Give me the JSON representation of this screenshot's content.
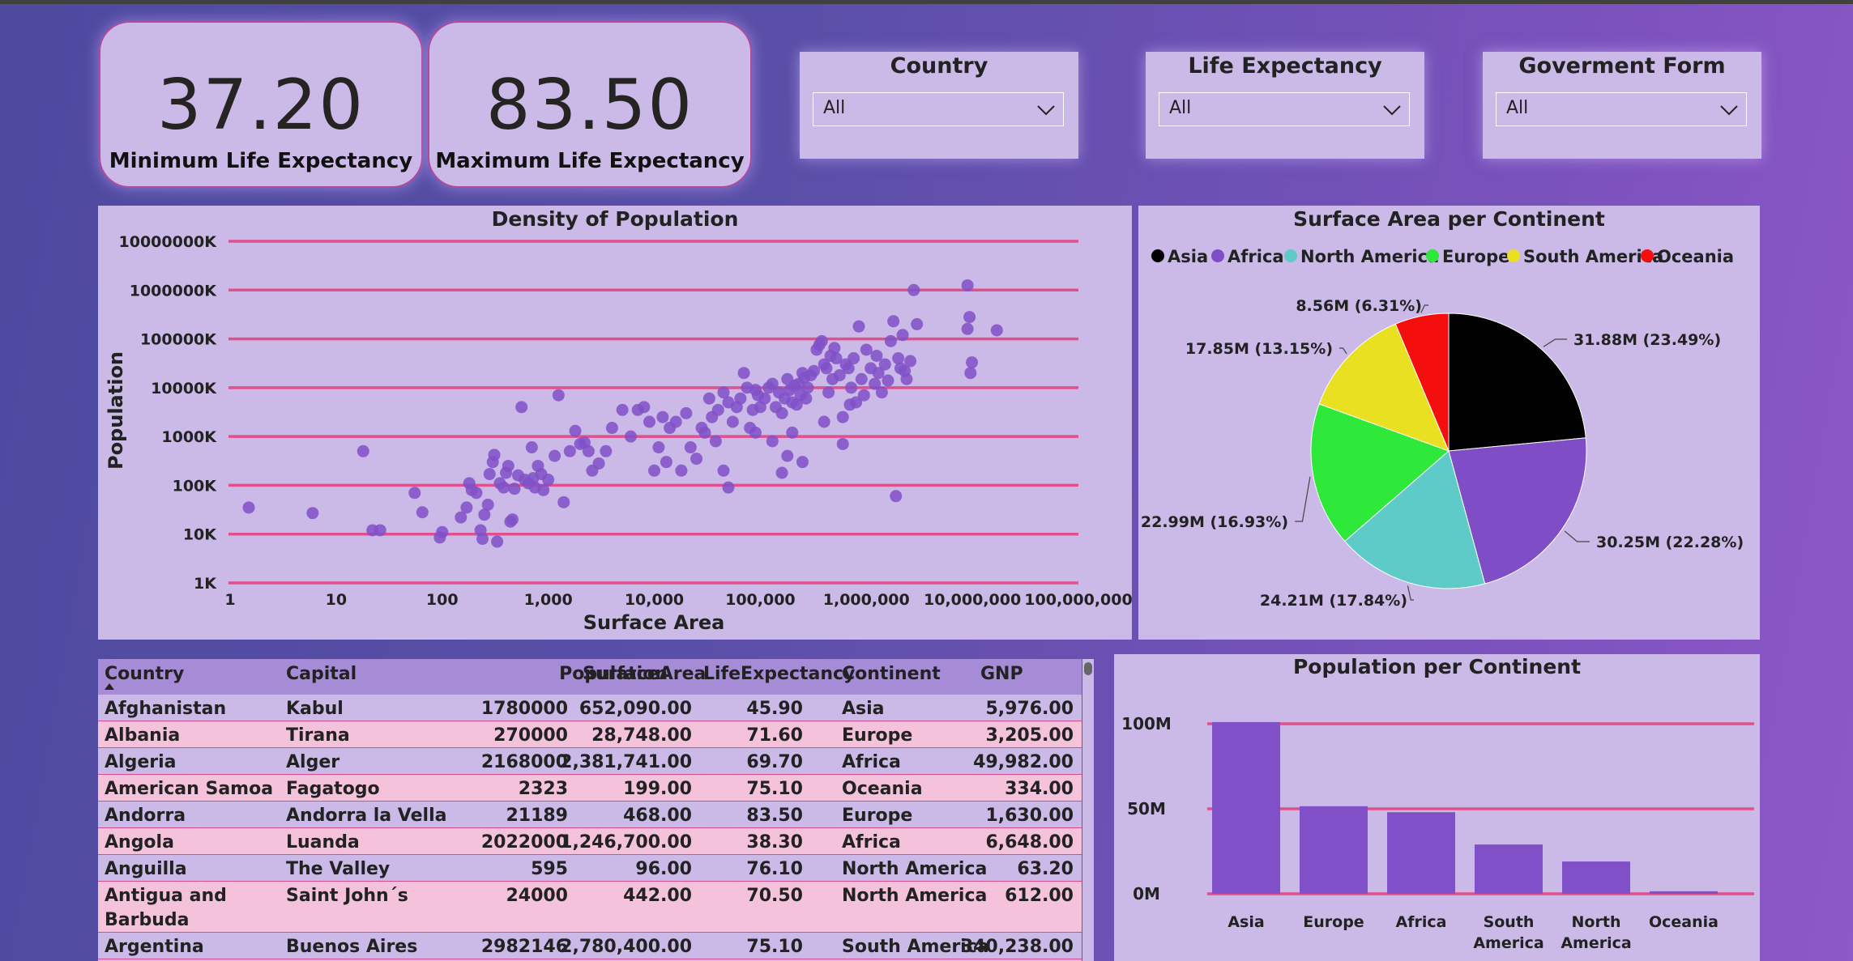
{
  "kpis": [
    {
      "value": "37.20",
      "label": "Minimum Life Expectancy"
    },
    {
      "value": "83.50",
      "label": "Maximum Life Expectancy"
    }
  ],
  "slicers": [
    {
      "title": "Country",
      "value": "All"
    },
    {
      "title": "Life Expectancy",
      "value": "All"
    },
    {
      "title": "Goverment Form",
      "value": "All"
    }
  ],
  "colors": {
    "accent": "#8050c8",
    "gridline": "#e0508a",
    "panel": "#cbb9e8",
    "header": "#a68bd6",
    "row_alt": "#f5c2dc",
    "icons": {
      "chevron": "chevron-down-icon"
    }
  },
  "scatter": {
    "title": "Density of Population",
    "chart_data": {
      "type": "scatter",
      "title": "Density of Population",
      "xlabel": "Surface Area",
      "ylabel": "Population",
      "x_scale": "log",
      "y_scale": "log",
      "xlim": [
        1,
        100000000
      ],
      "ylim": [
        1000,
        10000000000
      ],
      "x_ticks": [
        "1",
        "10",
        "100",
        "1,000",
        "10,000",
        "100,000",
        "1,000,000",
        "10,000,000",
        "100,000,000"
      ],
      "y_ticks": [
        "1K",
        "10K",
        "100K",
        "1000K",
        "10000K",
        "100000K",
        "1000000K",
        "10000000K"
      ],
      "grid": true,
      "points": [
        [
          1.5,
          35000
        ],
        [
          6,
          27000
        ],
        [
          18,
          500000
        ],
        [
          22,
          12000
        ],
        [
          26,
          12000
        ],
        [
          55,
          70000
        ],
        [
          65,
          28000
        ],
        [
          95,
          8500
        ],
        [
          100,
          11000
        ],
        [
          150,
          22000
        ],
        [
          170,
          35000
        ],
        [
          180,
          110000
        ],
        [
          190,
          80000
        ],
        [
          210,
          70000
        ],
        [
          230,
          12000
        ],
        [
          240,
          8000
        ],
        [
          250,
          25000
        ],
        [
          270,
          40000
        ],
        [
          280,
          170000
        ],
        [
          300,
          300000
        ],
        [
          310,
          420000
        ],
        [
          330,
          7000
        ],
        [
          350,
          110000
        ],
        [
          380,
          90000
        ],
        [
          400,
          180000
        ],
        [
          420,
          250000
        ],
        [
          440,
          18000
        ],
        [
          460,
          20000
        ],
        [
          480,
          85000
        ],
        [
          520,
          160000
        ],
        [
          560,
          4000000
        ],
        [
          600,
          130000
        ],
        [
          650,
          110000
        ],
        [
          700,
          600000
        ],
        [
          720,
          140000
        ],
        [
          750,
          90000
        ],
        [
          800,
          250000
        ],
        [
          860,
          170000
        ],
        [
          900,
          80000
        ],
        [
          1000,
          130000
        ],
        [
          1150,
          400000
        ],
        [
          1250,
          7000000
        ],
        [
          1400,
          45000
        ],
        [
          1600,
          500000
        ],
        [
          1800,
          1300000
        ],
        [
          2000,
          700000
        ],
        [
          2200,
          750000
        ],
        [
          2400,
          500000
        ],
        [
          2600,
          200000
        ],
        [
          3000,
          280000
        ],
        [
          3500,
          500000
        ],
        [
          4000,
          1500000
        ],
        [
          5000,
          3500000
        ],
        [
          6000,
          1000000
        ],
        [
          7000,
          3500000
        ],
        [
          8000,
          4000000
        ],
        [
          9000,
          2000000
        ],
        [
          10000,
          200000
        ],
        [
          11000,
          600000
        ],
        [
          12000,
          2500000
        ],
        [
          13000,
          300000
        ],
        [
          14000,
          1500000
        ],
        [
          16000,
          2000000
        ],
        [
          18000,
          200000
        ],
        [
          20000,
          3000000
        ],
        [
          22000,
          600000
        ],
        [
          25000,
          350000
        ],
        [
          28000,
          1500000
        ],
        [
          30000,
          1200000
        ],
        [
          33000,
          6000000
        ],
        [
          35000,
          2500000
        ],
        [
          38000,
          800000
        ],
        [
          40000,
          3500000
        ],
        [
          45000,
          8000000
        ],
        [
          50000,
          5000000
        ],
        [
          55000,
          2000000
        ],
        [
          60000,
          4000000
        ],
        [
          65000,
          6000000
        ],
        [
          70000,
          20000000
        ],
        [
          75000,
          10000000
        ],
        [
          80000,
          1500000
        ],
        [
          85000,
          3500000
        ],
        [
          90000,
          9000000
        ],
        [
          95000,
          7000000
        ],
        [
          100000,
          4000000
        ],
        [
          110000,
          6000000
        ],
        [
          120000,
          10000000
        ],
        [
          130000,
          12000000
        ],
        [
          140000,
          4000000
        ],
        [
          150000,
          8000000
        ],
        [
          160000,
          3000000
        ],
        [
          170000,
          6000000
        ],
        [
          180000,
          15000000
        ],
        [
          190000,
          9000000
        ],
        [
          200000,
          5000000
        ],
        [
          210000,
          11000000
        ],
        [
          220000,
          4500000
        ],
        [
          230000,
          12000000
        ],
        [
          240000,
          7000000
        ],
        [
          250000,
          20000000
        ],
        [
          260000,
          16000000
        ],
        [
          270000,
          6000000
        ],
        [
          280000,
          10000000
        ],
        [
          300000,
          18000000
        ],
        [
          320000,
          22000000
        ],
        [
          340000,
          60000000
        ],
        [
          360000,
          75000000
        ],
        [
          380000,
          90000000
        ],
        [
          400000,
          30000000
        ],
        [
          420000,
          25000000
        ],
        [
          440000,
          8000000
        ],
        [
          460000,
          45000000
        ],
        [
          480000,
          15000000
        ],
        [
          500000,
          65000000
        ],
        [
          520000,
          40000000
        ],
        [
          560000,
          18000000
        ],
        [
          600000,
          2500000
        ],
        [
          640000,
          30000000
        ],
        [
          680000,
          25000000
        ],
        [
          720000,
          10000000
        ],
        [
          760000,
          40000000
        ],
        [
          800000,
          5000000
        ],
        [
          850000,
          180000000
        ],
        [
          900000,
          15000000
        ],
        [
          950000,
          7000000
        ],
        [
          1000000,
          60000000
        ],
        [
          1100000,
          25000000
        ],
        [
          1200000,
          12000000
        ],
        [
          1250000,
          45000000
        ],
        [
          1300000,
          20000000
        ],
        [
          1400000,
          8000000
        ],
        [
          1500000,
          30000000
        ],
        [
          1600000,
          14000000
        ],
        [
          1700000,
          90000000
        ],
        [
          1800000,
          230000000
        ],
        [
          1900000,
          60000
        ],
        [
          2000000,
          40000000
        ],
        [
          2100000,
          25000000
        ],
        [
          2200000,
          120000000
        ],
        [
          2300000,
          22000000
        ],
        [
          2400000,
          15000000
        ],
        [
          2600000,
          35000000
        ],
        [
          2800000,
          1000000000
        ],
        [
          9000000,
          1250000000
        ],
        [
          9400000,
          280000000
        ],
        [
          9600000,
          20000000
        ],
        [
          9900000,
          33000000
        ],
        [
          17000000,
          150000000
        ],
        [
          200000,
          1200000
        ],
        [
          400000,
          2000000
        ],
        [
          700000,
          4500000
        ],
        [
          130000,
          800000
        ],
        [
          45000,
          200000
        ],
        [
          160000,
          180000
        ],
        [
          180000,
          400000
        ],
        [
          250000,
          300000
        ],
        [
          50000,
          90000
        ],
        [
          90000,
          1200000
        ],
        [
          600000,
          700000
        ],
        [
          9000000,
          160000000
        ],
        [
          3000000,
          200000000
        ]
      ]
    }
  },
  "pie": {
    "title": "Surface Area per Continent",
    "chart_data": {
      "type": "pie",
      "title": "Surface Area per Continent",
      "legend": "top",
      "slices": [
        {
          "name": "Asia",
          "value": 31.88,
          "label": "31.88M (23.49%)",
          "color": "#000000"
        },
        {
          "name": "Africa",
          "value": 30.25,
          "label": "30.25M (22.28%)",
          "color": "#7f4ec6"
        },
        {
          "name": "North America",
          "value": 24.21,
          "label": "24.21M (17.84%)",
          "color": "#5ecbc8"
        },
        {
          "name": "Europe",
          "value": 22.99,
          "label": "22.99M (16.93%)",
          "color": "#2ee83a"
        },
        {
          "name": "South America",
          "value": 17.85,
          "label": "17.85M (13.15%)",
          "color": "#e8e020"
        },
        {
          "name": "Oceania",
          "value": 8.56,
          "label": "8.56M (6.31%)",
          "color": "#f50e0e"
        }
      ]
    }
  },
  "bar": {
    "title": "Population per Continent",
    "chart_data": {
      "type": "bar",
      "title": "Population per Continent",
      "ylim": [
        0,
        100
      ],
      "y_ticks": [
        "0M",
        "50M",
        "100M"
      ],
      "categories": [
        "Asia",
        "Europe",
        "Africa",
        "South America",
        "North America",
        "Oceania"
      ],
      "category_lines": [
        [
          "Asia"
        ],
        [
          "Europe"
        ],
        [
          "Africa"
        ],
        [
          "South",
          "America"
        ],
        [
          "North",
          "America"
        ],
        [
          "Oceania"
        ]
      ],
      "values": [
        101,
        51.5,
        48,
        29,
        19,
        1.5
      ],
      "grid": true
    }
  },
  "table": {
    "columns": [
      "Country",
      "Capital",
      "Population",
      "SurfaceArea",
      "LifeExpectancy",
      "Continent",
      "GNP"
    ],
    "rows": [
      {
        "lines": [
          [
            "Afghanistan",
            "Kabul",
            "1780000",
            "652,090.00",
            "45.90",
            "Asia",
            "5,976.00"
          ]
        ]
      },
      {
        "lines": [
          [
            "Albania",
            "Tirana",
            "270000",
            "28,748.00",
            "71.60",
            "Europe",
            "3,205.00"
          ]
        ]
      },
      {
        "lines": [
          [
            "Algeria",
            "Alger",
            "2168000",
            "2,381,741.00",
            "69.70",
            "Africa",
            "49,982.00"
          ]
        ]
      },
      {
        "lines": [
          [
            "American Samoa",
            "Fagatogo",
            "2323",
            "199.00",
            "75.10",
            "Oceania",
            "334.00"
          ]
        ]
      },
      {
        "lines": [
          [
            "Andorra",
            "Andorra la Vella",
            "21189",
            "468.00",
            "83.50",
            "Europe",
            "1,630.00"
          ]
        ]
      },
      {
        "lines": [
          [
            "Angola",
            "Luanda",
            "2022000",
            "1,246,700.00",
            "38.30",
            "Africa",
            "6,648.00"
          ]
        ]
      },
      {
        "lines": [
          [
            "Anguilla",
            "The Valley",
            "595",
            "96.00",
            "76.10",
            "North America",
            "63.20"
          ]
        ]
      },
      {
        "lines": [
          [
            "Antigua and",
            "Saint John´s",
            "24000",
            "442.00",
            "70.50",
            "North America",
            "612.00"
          ],
          [
            "Barbuda",
            "",
            "",
            "",
            "",
            "",
            ""
          ]
        ]
      },
      {
        "lines": [
          [
            "Argentina",
            "Buenos Aires",
            "2982146",
            "2,780,400.00",
            "75.10",
            "South America",
            "340,238.00"
          ]
        ]
      }
    ]
  }
}
